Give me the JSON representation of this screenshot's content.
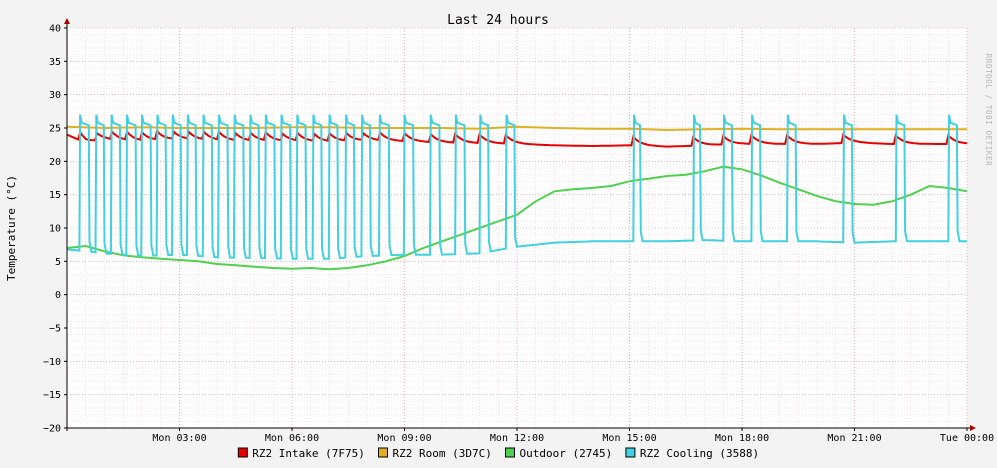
{
  "chart_data": {
    "type": "line",
    "title": "Last 24 hours",
    "ylabel": "Temperature (°C)",
    "xlabel": "",
    "watermark": "RRDTOOL / TOBI OETIKER",
    "ylim": [
      -20,
      40
    ],
    "yticks": [
      40,
      35,
      30,
      25,
      20,
      15,
      10,
      5,
      0,
      -5,
      -10,
      -15,
      -20
    ],
    "x_range_hours": [
      0,
      24
    ],
    "xticks": [
      {
        "hour": 3,
        "label": "Mon 03:00"
      },
      {
        "hour": 6,
        "label": "Mon 06:00"
      },
      {
        "hour": 9,
        "label": "Mon 09:00"
      },
      {
        "hour": 12,
        "label": "Mon 12:00"
      },
      {
        "hour": 15,
        "label": "Mon 15:00"
      },
      {
        "hour": 18,
        "label": "Mon 18:00"
      },
      {
        "hour": 21,
        "label": "Mon 21:00"
      },
      {
        "hour": 24,
        "label": "Tue 00:00"
      }
    ],
    "grid": true,
    "legend_position": "bottom",
    "series": [
      {
        "name": "RZ2 Intake (7F75)",
        "color": "#e60000",
        "points": [
          [
            0,
            24
          ],
          [
            0.5,
            22.8
          ],
          [
            1,
            23.2
          ],
          [
            2,
            23.0
          ],
          [
            3,
            23.3
          ],
          [
            4,
            23.1
          ],
          [
            5,
            23.0
          ],
          [
            6,
            23.0
          ],
          [
            7,
            22.9
          ],
          [
            8,
            23.1
          ],
          [
            9,
            23.0
          ],
          [
            10,
            22.8
          ],
          [
            11,
            22.7
          ],
          [
            12,
            22.6
          ],
          [
            13,
            22.4
          ],
          [
            14,
            22.3
          ],
          [
            15,
            22.4
          ],
          [
            16,
            22.2
          ],
          [
            17,
            22.4
          ],
          [
            18,
            22.6
          ],
          [
            19,
            22.6
          ],
          [
            20,
            22.6
          ],
          [
            21,
            22.8
          ],
          [
            22,
            22.6
          ],
          [
            23,
            22.6
          ],
          [
            24,
            22.6
          ]
        ]
      },
      {
        "name": "RZ2 Room (3D7C)",
        "color": "#e0b020",
        "points": [
          [
            0,
            25.2
          ],
          [
            1,
            25.0
          ],
          [
            2,
            25.1
          ],
          [
            3,
            25.0
          ],
          [
            4,
            25.0
          ],
          [
            5,
            25.0
          ],
          [
            6,
            25.1
          ],
          [
            7,
            25.1
          ],
          [
            8,
            25.0
          ],
          [
            9,
            25.0
          ],
          [
            10,
            25.0
          ],
          [
            11,
            24.9
          ],
          [
            12,
            25.2
          ],
          [
            13,
            25.0
          ],
          [
            14,
            24.9
          ],
          [
            15,
            24.9
          ],
          [
            16,
            24.7
          ],
          [
            17,
            24.8
          ],
          [
            18,
            24.9
          ],
          [
            19,
            24.8
          ],
          [
            20,
            24.8
          ],
          [
            21,
            24.8
          ],
          [
            22,
            24.8
          ],
          [
            23,
            24.8
          ],
          [
            24,
            24.8
          ]
        ]
      },
      {
        "name": "Outdoor (2745)",
        "color": "#50d050",
        "points": [
          [
            0,
            7.0
          ],
          [
            0.5,
            7.3
          ],
          [
            1,
            6.5
          ],
          [
            1.5,
            5.9
          ],
          [
            2,
            5.6
          ],
          [
            2.5,
            5.4
          ],
          [
            3,
            5.2
          ],
          [
            3.5,
            5.0
          ],
          [
            4,
            4.6
          ],
          [
            4.5,
            4.4
          ],
          [
            5,
            4.2
          ],
          [
            5.5,
            4.0
          ],
          [
            6,
            3.9
          ],
          [
            6.5,
            4.0
          ],
          [
            7,
            3.8
          ],
          [
            7.5,
            4.0
          ],
          [
            8,
            4.4
          ],
          [
            8.5,
            5.0
          ],
          [
            9,
            5.8
          ],
          [
            9.5,
            7.0
          ],
          [
            10,
            8.0
          ],
          [
            10.5,
            9.0
          ],
          [
            11,
            10.0
          ],
          [
            11.5,
            11.0
          ],
          [
            12,
            12.0
          ],
          [
            12.5,
            14.0
          ],
          [
            13,
            15.5
          ],
          [
            13.5,
            15.8
          ],
          [
            14,
            16.0
          ],
          [
            14.5,
            16.3
          ],
          [
            15,
            17.0
          ],
          [
            15.5,
            17.4
          ],
          [
            16,
            17.8
          ],
          [
            16.5,
            18.0
          ],
          [
            17,
            18.5
          ],
          [
            17.5,
            19.2
          ],
          [
            18,
            18.8
          ],
          [
            18.5,
            17.9
          ],
          [
            19,
            16.8
          ],
          [
            19.5,
            15.8
          ],
          [
            20,
            14.8
          ],
          [
            20.5,
            14.0
          ],
          [
            21,
            13.6
          ],
          [
            21.5,
            13.5
          ],
          [
            22,
            14.0
          ],
          [
            22.5,
            15.0
          ],
          [
            23,
            16.3
          ],
          [
            23.5,
            16.0
          ],
          [
            24,
            15.5
          ]
        ]
      },
      {
        "name": "RZ2 Cooling (3588)",
        "color": "#40d0e0",
        "base_points": [
          [
            0,
            6.8
          ],
          [
            1,
            6.2
          ],
          [
            2,
            5.8
          ],
          [
            3,
            6.0
          ],
          [
            4,
            5.6
          ],
          [
            5,
            5.5
          ],
          [
            6,
            5.4
          ],
          [
            7,
            5.4
          ],
          [
            8,
            5.8
          ],
          [
            9,
            6.0
          ],
          [
            10,
            6.0
          ],
          [
            11,
            6.2
          ],
          [
            12,
            7.2
          ],
          [
            13,
            7.8
          ],
          [
            14,
            8.0
          ],
          [
            15,
            8.0
          ],
          [
            16,
            8.0
          ],
          [
            17,
            8.2
          ],
          [
            18,
            8.0
          ],
          [
            19,
            8.0
          ],
          [
            20,
            8.0
          ],
          [
            21,
            7.8
          ],
          [
            22,
            8.0
          ],
          [
            23,
            8.0
          ],
          [
            24,
            8.0
          ]
        ],
        "peak": 27.0,
        "cycles": [
          [
            0.33,
            0.6
          ],
          [
            0.76,
            1.0
          ],
          [
            1.17,
            1.43
          ],
          [
            1.58,
            1.85
          ],
          [
            1.98,
            2.25
          ],
          [
            2.39,
            2.65
          ],
          [
            2.8,
            3.05
          ],
          [
            3.2,
            3.45
          ],
          [
            3.62,
            3.88
          ],
          [
            4.03,
            4.3
          ],
          [
            4.45,
            4.72
          ],
          [
            4.87,
            5.13
          ],
          [
            5.28,
            5.55
          ],
          [
            5.7,
            5.97
          ],
          [
            6.12,
            6.38
          ],
          [
            6.55,
            6.8
          ],
          [
            6.98,
            7.23
          ],
          [
            7.42,
            7.67
          ],
          [
            7.85,
            8.1
          ],
          [
            8.32,
            8.6
          ],
          [
            8.98,
            9.25
          ],
          [
            9.68,
            9.95
          ],
          [
            10.35,
            10.62
          ],
          [
            11.0,
            11.25
          ],
          [
            11.7,
            11.95
          ],
          [
            15.1,
            15.3
          ],
          [
            16.7,
            16.9
          ],
          [
            17.5,
            17.75
          ],
          [
            18.25,
            18.5
          ],
          [
            19.2,
            19.45
          ],
          [
            20.7,
            20.95
          ],
          [
            22.1,
            22.35
          ],
          [
            23.5,
            23.75
          ]
        ]
      }
    ]
  }
}
